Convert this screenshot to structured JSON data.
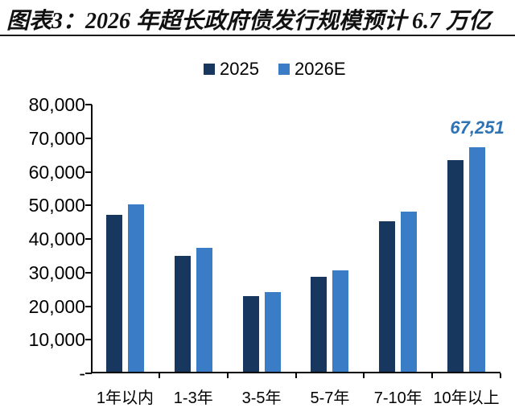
{
  "title": "图表3：2026 年超长政府债发行规模预计 6.7 万亿",
  "colors": {
    "series_2025": "#17375E",
    "series_2026e": "#3A7CC6",
    "annotation": "#2E74B5",
    "axis": "#000000",
    "title_text": "#111111"
  },
  "legend": {
    "position": "top-center",
    "items": [
      {
        "label": "2025",
        "color": "#17375E"
      },
      {
        "label": "2026E",
        "color": "#3A7CC6"
      }
    ]
  },
  "chart_data": {
    "type": "bar",
    "title": "图表3：2026 年超长政府债发行规模预计 6.7 万亿",
    "categories": [
      "1年以内",
      "1-3年",
      "3-5年",
      "5-7年",
      "7-10年",
      "10年以上"
    ],
    "series": [
      {
        "name": "2025",
        "color": "#17375E",
        "values": [
          47200,
          35000,
          23000,
          28700,
          45300,
          63500
        ]
      },
      {
        "name": "2026E",
        "color": "#3A7CC6",
        "values": [
          50300,
          37400,
          24200,
          30700,
          48100,
          67251
        ]
      }
    ],
    "y_tick_labels": [
      "80,000",
      "70,000",
      "60,000",
      "50,000",
      "40,000",
      "30,000",
      "20,000",
      "10,000",
      "-"
    ],
    "ylim": [
      0,
      80000
    ],
    "xlabel": "",
    "ylabel": "",
    "grid": false,
    "legend_position": "top",
    "annotations": [
      {
        "series": "2026E",
        "category": "10年以上",
        "text": "67,251"
      }
    ]
  }
}
